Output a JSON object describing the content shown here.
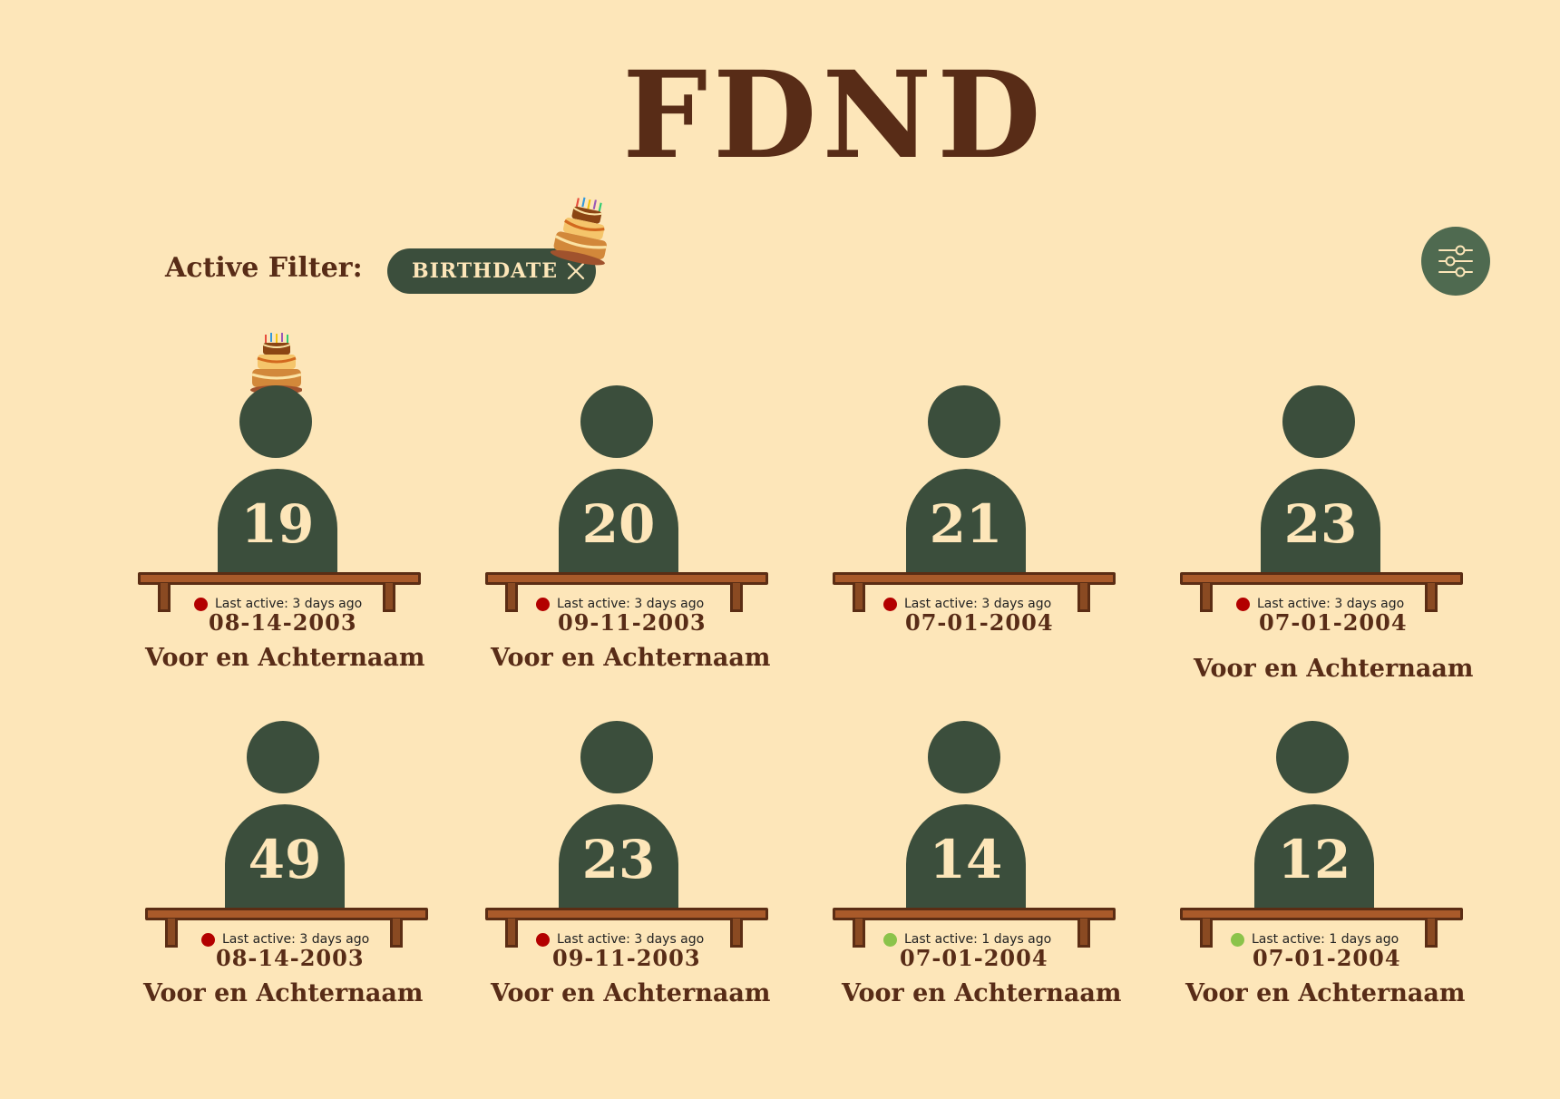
{
  "header": {
    "title": "FDND"
  },
  "filter": {
    "label": "Active Filter:",
    "chip_label": "BIRTHDATE",
    "chip_close_icon": "close-icon",
    "chip_decoration_icon": "birthday-cake-icon"
  },
  "toolbar": {
    "settings_icon": "sliders-icon"
  },
  "colors": {
    "background": "#fde6b9",
    "primary_brown": "#582c17",
    "dark_green": "#3b4e3c",
    "settings_green": "#4f6a50",
    "desk_brown": "#a95a2a",
    "status_inactive": "#b30000",
    "status_active": "#8bc34a"
  },
  "students": [
    {
      "number": "19",
      "status": "Last active: 3 days ago",
      "status_color": "#b30000",
      "date": "08-14-2003",
      "name": "Voor en Achternaam",
      "birthday_cake": true
    },
    {
      "number": "20",
      "status": "Last active: 3 days ago",
      "status_color": "#b30000",
      "date": "09-11-2003",
      "name": "Voor en Achternaam",
      "birthday_cake": false
    },
    {
      "number": "21",
      "status": "Last active: 3 days ago",
      "status_color": "#b30000",
      "date": "07-01-2004",
      "name": "",
      "birthday_cake": false
    },
    {
      "number": "23",
      "status": "Last active: 3 days ago",
      "status_color": "#b30000",
      "date": "07-01-2004",
      "name": "Voor en Achternaam",
      "birthday_cake": false
    },
    {
      "number": "49",
      "status": "Last active: 3 days ago",
      "status_color": "#b30000",
      "date": "08-14-2003",
      "name": "Voor en Achternaam",
      "birthday_cake": false
    },
    {
      "number": "23",
      "status": "Last active: 3 days ago",
      "status_color": "#b30000",
      "date": "09-11-2003",
      "name": "Voor en Achternaam",
      "birthday_cake": false
    },
    {
      "number": "14",
      "status": "Last active: 1 days ago",
      "status_color": "#8bc34a",
      "date": "07-01-2004",
      "name": "Voor en Achternaam",
      "birthday_cake": false
    },
    {
      "number": "12",
      "status": "Last active: 1 days ago",
      "status_color": "#8bc34a",
      "date": "07-01-2004",
      "name": "Voor en Achternaam",
      "birthday_cake": false
    }
  ]
}
